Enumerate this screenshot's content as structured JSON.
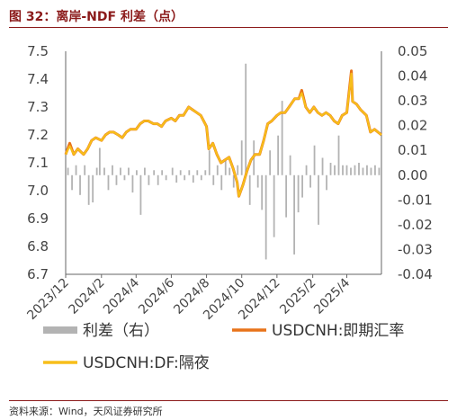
{
  "title": "图 32：离岸-NDF 利差（点）",
  "source": "资料来源：Wind，天风证券研究所",
  "chart_data": {
    "type": "line",
    "left_axis": {
      "min": 6.7,
      "max": 7.5,
      "ticks": [
        "7.5",
        "7.4",
        "7.3",
        "7.2",
        "7.1",
        "7.0",
        "6.9",
        "6.8",
        "6.7"
      ],
      "tick_values": [
        7.5,
        7.4,
        7.3,
        7.2,
        7.1,
        7.0,
        6.9,
        6.8,
        6.7
      ]
    },
    "right_axis": {
      "min": -0.04,
      "max": 0.05,
      "ticks": [
        "0.05",
        "0.04",
        "0.03",
        "0.02",
        "0.01",
        "0.00",
        "-0.01",
        "-0.02",
        "-0.03",
        "-0.04"
      ],
      "tick_values": [
        0.05,
        0.04,
        0.03,
        0.02,
        0.01,
        0.0,
        -0.01,
        -0.02,
        -0.03,
        -0.04
      ]
    },
    "x_axis": {
      "start": "2023-12-01",
      "end": "2025-05-31",
      "tick_labels": [
        "2023/12",
        "2024/2",
        "2024/4",
        "2024/6",
        "2024/8",
        "2024/10",
        "2024/12",
        "2025/2",
        "2025/4"
      ],
      "tick_dates": [
        "2023-12-01",
        "2024-02-01",
        "2024-04-01",
        "2024-06-01",
        "2024-08-01",
        "2024-10-01",
        "2024-12-01",
        "2025-02-01",
        "2025-04-01"
      ]
    },
    "legend": [
      {
        "label": "利差（右）",
        "color": "#b3b3b3",
        "kind": "bar"
      },
      {
        "label": "USDCNH:即期汇率",
        "color": "#E8731A",
        "kind": "line"
      },
      {
        "label": "USDCNH:DF:隔夜",
        "color": "#F7BE1A",
        "kind": "line"
      }
    ],
    "series": [
      {
        "name": "USDCNH:即期汇率",
        "axis": "left",
        "color": "#E8731A",
        "points": [
          [
            "2023-12-01",
            7.13
          ],
          [
            "2023-12-08",
            7.17
          ],
          [
            "2023-12-15",
            7.13
          ],
          [
            "2023-12-22",
            7.15
          ],
          [
            "2024-01-01",
            7.13
          ],
          [
            "2024-01-08",
            7.15
          ],
          [
            "2024-01-15",
            7.18
          ],
          [
            "2024-01-22",
            7.19
          ],
          [
            "2024-02-01",
            7.18
          ],
          [
            "2024-02-08",
            7.2
          ],
          [
            "2024-02-15",
            7.21
          ],
          [
            "2024-02-22",
            7.21
          ],
          [
            "2024-03-01",
            7.2
          ],
          [
            "2024-03-08",
            7.19
          ],
          [
            "2024-03-15",
            7.21
          ],
          [
            "2024-03-22",
            7.22
          ],
          [
            "2024-04-01",
            7.22
          ],
          [
            "2024-04-08",
            7.24
          ],
          [
            "2024-04-15",
            7.25
          ],
          [
            "2024-04-22",
            7.25
          ],
          [
            "2024-05-01",
            7.24
          ],
          [
            "2024-05-08",
            7.24
          ],
          [
            "2024-05-15",
            7.23
          ],
          [
            "2024-05-22",
            7.25
          ],
          [
            "2024-06-01",
            7.26
          ],
          [
            "2024-06-08",
            7.25
          ],
          [
            "2024-06-15",
            7.27
          ],
          [
            "2024-06-22",
            7.27
          ],
          [
            "2024-07-01",
            7.3
          ],
          [
            "2024-07-08",
            7.29
          ],
          [
            "2024-07-15",
            7.28
          ],
          [
            "2024-07-22",
            7.27
          ],
          [
            "2024-08-01",
            7.23
          ],
          [
            "2024-08-05",
            7.15
          ],
          [
            "2024-08-12",
            7.17
          ],
          [
            "2024-08-19",
            7.13
          ],
          [
            "2024-08-26",
            7.1
          ],
          [
            "2024-09-02",
            7.11
          ],
          [
            "2024-09-09",
            7.12
          ],
          [
            "2024-09-16",
            7.08
          ],
          [
            "2024-09-23",
            7.03
          ],
          [
            "2024-09-26",
            6.98
          ],
          [
            "2024-10-03",
            7.02
          ],
          [
            "2024-10-10",
            7.07
          ],
          [
            "2024-10-17",
            7.11
          ],
          [
            "2024-10-24",
            7.13
          ],
          [
            "2024-11-01",
            7.13
          ],
          [
            "2024-11-08",
            7.18
          ],
          [
            "2024-11-15",
            7.24
          ],
          [
            "2024-11-22",
            7.25
          ],
          [
            "2024-12-01",
            7.27
          ],
          [
            "2024-12-08",
            7.28
          ],
          [
            "2024-12-15",
            7.28
          ],
          [
            "2024-12-22",
            7.3
          ],
          [
            "2025-01-01",
            7.33
          ],
          [
            "2025-01-08",
            7.33
          ],
          [
            "2025-01-13",
            7.36
          ],
          [
            "2025-01-20",
            7.3
          ],
          [
            "2025-01-27",
            7.28
          ],
          [
            "2025-02-03",
            7.3
          ],
          [
            "2025-02-10",
            7.28
          ],
          [
            "2025-02-17",
            7.27
          ],
          [
            "2025-02-24",
            7.28
          ],
          [
            "2025-03-03",
            7.27
          ],
          [
            "2025-03-10",
            7.25
          ],
          [
            "2025-03-17",
            7.24
          ],
          [
            "2025-03-24",
            7.27
          ],
          [
            "2025-04-01",
            7.28
          ],
          [
            "2025-04-09",
            7.43
          ],
          [
            "2025-04-11",
            7.32
          ],
          [
            "2025-04-18",
            7.31
          ],
          [
            "2025-04-25",
            7.29
          ],
          [
            "2025-05-05",
            7.27
          ],
          [
            "2025-05-12",
            7.21
          ],
          [
            "2025-05-19",
            7.22
          ],
          [
            "2025-05-31",
            7.2
          ]
        ]
      },
      {
        "name": "USDCNH:DF:隔夜",
        "axis": "left",
        "color": "#F7BE1A",
        "points": [
          [
            "2023-12-01",
            7.13
          ],
          [
            "2023-12-08",
            7.16
          ],
          [
            "2023-12-15",
            7.13
          ],
          [
            "2023-12-22",
            7.15
          ],
          [
            "2024-01-01",
            7.13
          ],
          [
            "2024-01-08",
            7.15
          ],
          [
            "2024-01-15",
            7.18
          ],
          [
            "2024-01-22",
            7.19
          ],
          [
            "2024-02-01",
            7.18
          ],
          [
            "2024-02-08",
            7.2
          ],
          [
            "2024-02-15",
            7.21
          ],
          [
            "2024-02-22",
            7.21
          ],
          [
            "2024-03-01",
            7.2
          ],
          [
            "2024-03-08",
            7.19
          ],
          [
            "2024-03-15",
            7.21
          ],
          [
            "2024-03-22",
            7.22
          ],
          [
            "2024-04-01",
            7.22
          ],
          [
            "2024-04-08",
            7.24
          ],
          [
            "2024-04-15",
            7.25
          ],
          [
            "2024-04-22",
            7.25
          ],
          [
            "2024-05-01",
            7.24
          ],
          [
            "2024-05-08",
            7.24
          ],
          [
            "2024-05-15",
            7.23
          ],
          [
            "2024-05-22",
            7.25
          ],
          [
            "2024-06-01",
            7.26
          ],
          [
            "2024-06-08",
            7.25
          ],
          [
            "2024-06-15",
            7.27
          ],
          [
            "2024-06-22",
            7.27
          ],
          [
            "2024-07-01",
            7.3
          ],
          [
            "2024-07-08",
            7.29
          ],
          [
            "2024-07-15",
            7.28
          ],
          [
            "2024-07-22",
            7.27
          ],
          [
            "2024-08-01",
            7.23
          ],
          [
            "2024-08-05",
            7.15
          ],
          [
            "2024-08-12",
            7.17
          ],
          [
            "2024-08-19",
            7.13
          ],
          [
            "2024-08-26",
            7.1
          ],
          [
            "2024-09-02",
            7.11
          ],
          [
            "2024-09-09",
            7.12
          ],
          [
            "2024-09-16",
            7.08
          ],
          [
            "2024-09-23",
            7.03
          ],
          [
            "2024-09-26",
            6.98
          ],
          [
            "2024-10-03",
            7.02
          ],
          [
            "2024-10-10",
            7.07
          ],
          [
            "2024-10-17",
            7.11
          ],
          [
            "2024-10-24",
            7.13
          ],
          [
            "2024-11-01",
            7.13
          ],
          [
            "2024-11-08",
            7.18
          ],
          [
            "2024-11-15",
            7.24
          ],
          [
            "2024-11-22",
            7.25
          ],
          [
            "2024-12-01",
            7.27
          ],
          [
            "2024-12-08",
            7.28
          ],
          [
            "2024-12-15",
            7.28
          ],
          [
            "2024-12-22",
            7.3
          ],
          [
            "2025-01-01",
            7.33
          ],
          [
            "2025-01-08",
            7.33
          ],
          [
            "2025-01-13",
            7.35
          ],
          [
            "2025-01-20",
            7.3
          ],
          [
            "2025-01-27",
            7.28
          ],
          [
            "2025-02-03",
            7.3
          ],
          [
            "2025-02-10",
            7.28
          ],
          [
            "2025-02-17",
            7.27
          ],
          [
            "2025-02-24",
            7.28
          ],
          [
            "2025-03-03",
            7.27
          ],
          [
            "2025-03-10",
            7.25
          ],
          [
            "2025-03-17",
            7.24
          ],
          [
            "2025-03-24",
            7.27
          ],
          [
            "2025-04-01",
            7.28
          ],
          [
            "2025-04-09",
            7.42
          ],
          [
            "2025-04-11",
            7.32
          ],
          [
            "2025-04-18",
            7.31
          ],
          [
            "2025-04-25",
            7.29
          ],
          [
            "2025-05-05",
            7.27
          ],
          [
            "2025-05-12",
            7.21
          ],
          [
            "2025-05-19",
            7.22
          ],
          [
            "2025-05-31",
            7.2
          ]
        ]
      },
      {
        "name": "利差（右）",
        "axis": "right",
        "type": "bar",
        "color": "#b3b3b3",
        "points": [
          [
            "2023-12-05",
            0.003
          ],
          [
            "2023-12-12",
            -0.006
          ],
          [
            "2023-12-19",
            0.004
          ],
          [
            "2023-12-26",
            -0.008
          ],
          [
            "2024-01-03",
            0.004
          ],
          [
            "2024-01-10",
            -0.012
          ],
          [
            "2024-01-17",
            -0.011
          ],
          [
            "2024-01-24",
            0.003
          ],
          [
            "2024-01-29",
            0.011
          ],
          [
            "2024-02-06",
            0.003
          ],
          [
            "2024-02-13",
            -0.006
          ],
          [
            "2024-02-20",
            0.004
          ],
          [
            "2024-02-27",
            -0.004
          ],
          [
            "2024-03-05",
            0.003
          ],
          [
            "2024-03-12",
            -0.002
          ],
          [
            "2024-03-19",
            0.003
          ],
          [
            "2024-03-26",
            -0.007
          ],
          [
            "2024-04-02",
            0.002
          ],
          [
            "2024-04-09",
            -0.016
          ],
          [
            "2024-04-16",
            0.003
          ],
          [
            "2024-04-23",
            -0.004
          ],
          [
            "2024-05-02",
            0.002
          ],
          [
            "2024-05-09",
            -0.004
          ],
          [
            "2024-05-16",
            0.002
          ],
          [
            "2024-05-23",
            -0.002
          ],
          [
            "2024-06-03",
            0.003
          ],
          [
            "2024-06-10",
            -0.003
          ],
          [
            "2024-06-17",
            0.002
          ],
          [
            "2024-06-24",
            -0.002
          ],
          [
            "2024-07-02",
            0.002
          ],
          [
            "2024-07-09",
            -0.003
          ],
          [
            "2024-07-16",
            0.002
          ],
          [
            "2024-07-23",
            -0.002
          ],
          [
            "2024-07-30",
            0.002
          ],
          [
            "2024-08-06",
            0.01
          ],
          [
            "2024-08-13",
            -0.004
          ],
          [
            "2024-08-20",
            0.004
          ],
          [
            "2024-08-27",
            -0.006
          ],
          [
            "2024-09-03",
            0.006
          ],
          [
            "2024-09-10",
            0.003
          ],
          [
            "2024-09-17",
            -0.005
          ],
          [
            "2024-09-24",
            0.004
          ],
          [
            "2024-10-01",
            0.014
          ],
          [
            "2024-10-08",
            0.045
          ],
          [
            "2024-10-15",
            -0.012
          ],
          [
            "2024-10-22",
            0.014
          ],
          [
            "2024-10-29",
            -0.005
          ],
          [
            "2024-11-05",
            -0.014
          ],
          [
            "2024-11-12",
            -0.034
          ],
          [
            "2024-11-19",
            0.01
          ],
          [
            "2024-11-26",
            -0.025
          ],
          [
            "2024-12-03",
            0.016
          ],
          [
            "2024-12-10",
            0.03
          ],
          [
            "2024-12-17",
            -0.017
          ],
          [
            "2024-12-24",
            0.008
          ],
          [
            "2024-12-31",
            -0.032
          ],
          [
            "2025-01-07",
            -0.015
          ],
          [
            "2025-01-14",
            -0.009
          ],
          [
            "2025-01-21",
            0.004
          ],
          [
            "2025-01-28",
            -0.005
          ],
          [
            "2025-02-04",
            0.012
          ],
          [
            "2025-02-11",
            -0.02
          ],
          [
            "2025-02-18",
            0.007
          ],
          [
            "2025-02-25",
            -0.006
          ],
          [
            "2025-03-04",
            0.005
          ],
          [
            "2025-03-11",
            0.004
          ],
          [
            "2025-03-18",
            0.016
          ],
          [
            "2025-03-25",
            0.004
          ],
          [
            "2025-04-01",
            0.004
          ],
          [
            "2025-04-08",
            0.003
          ],
          [
            "2025-04-15",
            0.004
          ],
          [
            "2025-04-22",
            0.005
          ],
          [
            "2025-04-29",
            0.003
          ],
          [
            "2025-05-06",
            0.004
          ],
          [
            "2025-05-13",
            0.003
          ],
          [
            "2025-05-20",
            0.004
          ],
          [
            "2025-05-27",
            0.003
          ]
        ]
      }
    ]
  }
}
